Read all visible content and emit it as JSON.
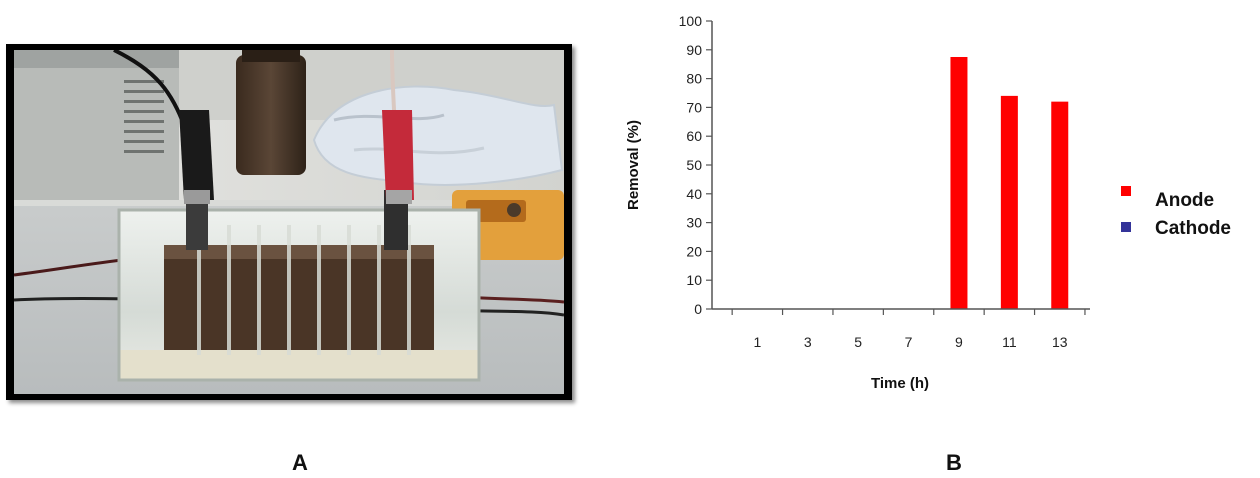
{
  "panels": {
    "a_label": "A",
    "b_label": "B"
  },
  "colors": {
    "anode": "#ff0000",
    "cathode": "#333399",
    "axis": "#555555"
  },
  "chart_data": {
    "type": "bar",
    "title": "",
    "xlabel": "Time (h)",
    "ylabel": "Removal (%)",
    "ylim": [
      0,
      100
    ],
    "yticks": [
      0,
      10,
      20,
      30,
      40,
      50,
      60,
      70,
      80,
      90,
      100
    ],
    "categories": [
      "1",
      "3",
      "5",
      "7",
      "9",
      "11",
      "13"
    ],
    "series": [
      {
        "name": "Anode",
        "color": "#ff0000",
        "values": [
          0,
          0,
          0,
          0,
          87.5,
          74,
          72
        ]
      },
      {
        "name": "Cathode",
        "color": "#333399",
        "values": [
          0,
          0,
          0,
          0,
          0,
          0,
          0
        ]
      }
    ],
    "grid": false,
    "legend_position": "right"
  }
}
